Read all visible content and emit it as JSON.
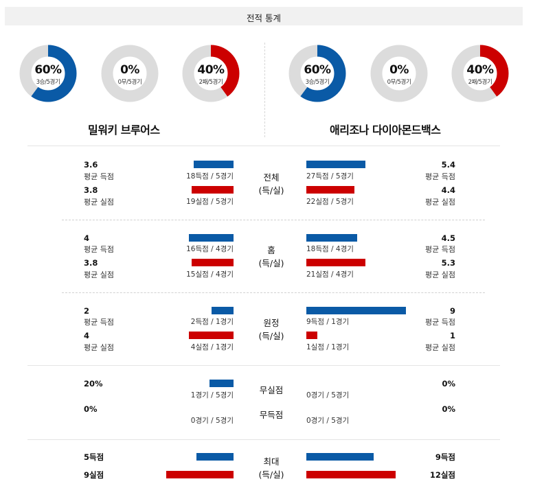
{
  "header": {
    "title": "전적 통계"
  },
  "teams": {
    "left": "밀워키 브루어스",
    "right": "애리조나 다이아몬드백스"
  },
  "donuts": {
    "left": [
      {
        "pct": "60%",
        "sub": "3승/5경기",
        "value": 0.6,
        "color": "#0a5aa6"
      },
      {
        "pct": "0%",
        "sub": "0무/5경기",
        "value": 0,
        "color": "#0a5aa6"
      },
      {
        "pct": "40%",
        "sub": "2패/5경기",
        "value": 0.4,
        "color": "#cc0000"
      }
    ],
    "right": [
      {
        "pct": "60%",
        "sub": "3승/5경기",
        "value": 0.6,
        "color": "#0a5aa6"
      },
      {
        "pct": "0%",
        "sub": "0무/5경기",
        "value": 0,
        "color": "#0a5aa6"
      },
      {
        "pct": "40%",
        "sub": "2패/5경기",
        "value": 0.4,
        "color": "#cc0000"
      }
    ]
  },
  "colors": {
    "score": "#0a5aa6",
    "concede": "#cc0000",
    "track": "#dcdcdc"
  },
  "sections": {
    "overall": {
      "cat1": "전체",
      "cat2": "(득/실)",
      "left_score": "3.6",
      "left_score_label": "평균 득점",
      "left_score_cap": "18득점 / 5경기",
      "left_score_ratio": 0.33,
      "left_concede": "3.8",
      "left_concede_label": "평균 실점",
      "left_concede_cap": "19실점 / 5경기",
      "left_concede_ratio": 0.35,
      "right_score": "5.4",
      "right_score_label": "평균 득점",
      "right_score_cap": "27득점 / 5경기",
      "right_score_ratio": 0.49,
      "right_concede": "4.4",
      "right_concede_label": "평균 실점",
      "right_concede_cap": "22실점 / 5경기",
      "right_concede_ratio": 0.4
    },
    "home": {
      "cat1": "홈",
      "cat2": "(득/실)",
      "left_score": "4",
      "left_score_label": "평균 득점",
      "left_score_cap": "16득점 / 4경기",
      "left_score_ratio": 0.37,
      "left_concede": "3.8",
      "left_concede_label": "평균 실점",
      "left_concede_cap": "15실점 / 4경기",
      "left_concede_ratio": 0.35,
      "right_score": "4.5",
      "right_score_label": "평균 득점",
      "right_score_cap": "18득점 / 4경기",
      "right_score_ratio": 0.42,
      "right_concede": "5.3",
      "right_concede_label": "평균 실점",
      "right_concede_cap": "21실점 / 4경기",
      "right_concede_ratio": 0.49
    },
    "away": {
      "cat1": "원정",
      "cat2": "(득/실)",
      "left_score": "2",
      "left_score_label": "평균 득점",
      "left_score_cap": "2득점 / 1경기",
      "left_score_ratio": 0.18,
      "left_concede": "4",
      "left_concede_label": "평균 실점",
      "left_concede_cap": "4실점 / 1경기",
      "left_concede_ratio": 0.37,
      "right_score": "9",
      "right_score_label": "평균 득점",
      "right_score_cap": "9득점 / 1경기",
      "right_score_ratio": 0.83,
      "right_concede": "1",
      "right_concede_label": "평균 실점",
      "right_concede_cap": "1실점 / 1경기",
      "right_concede_ratio": 0.09
    },
    "shutout": {
      "cat_clean": "무실점",
      "cat_scoreless": "무득점",
      "left_clean": "20%",
      "left_clean_cap": "1경기 / 5경기",
      "left_clean_ratio": 0.2,
      "left_scoreless": "0%",
      "left_scoreless_cap": "0경기 / 5경기",
      "left_scoreless_ratio": 0,
      "right_clean": "0%",
      "right_clean_cap": "0경기 / 5경기",
      "right_clean_ratio": 0,
      "right_scoreless": "0%",
      "right_scoreless_cap": "0경기 / 5경기",
      "right_scoreless_ratio": 0
    },
    "max": {
      "cat1": "최대",
      "cat2": "(득/실)",
      "left_score": "5득점",
      "left_score_ratio": 0.31,
      "left_concede": "9실점",
      "left_concede_ratio": 0.56,
      "right_score": "9득점",
      "right_score_ratio": 0.56,
      "right_concede": "12실점",
      "right_concede_ratio": 0.74
    }
  }
}
